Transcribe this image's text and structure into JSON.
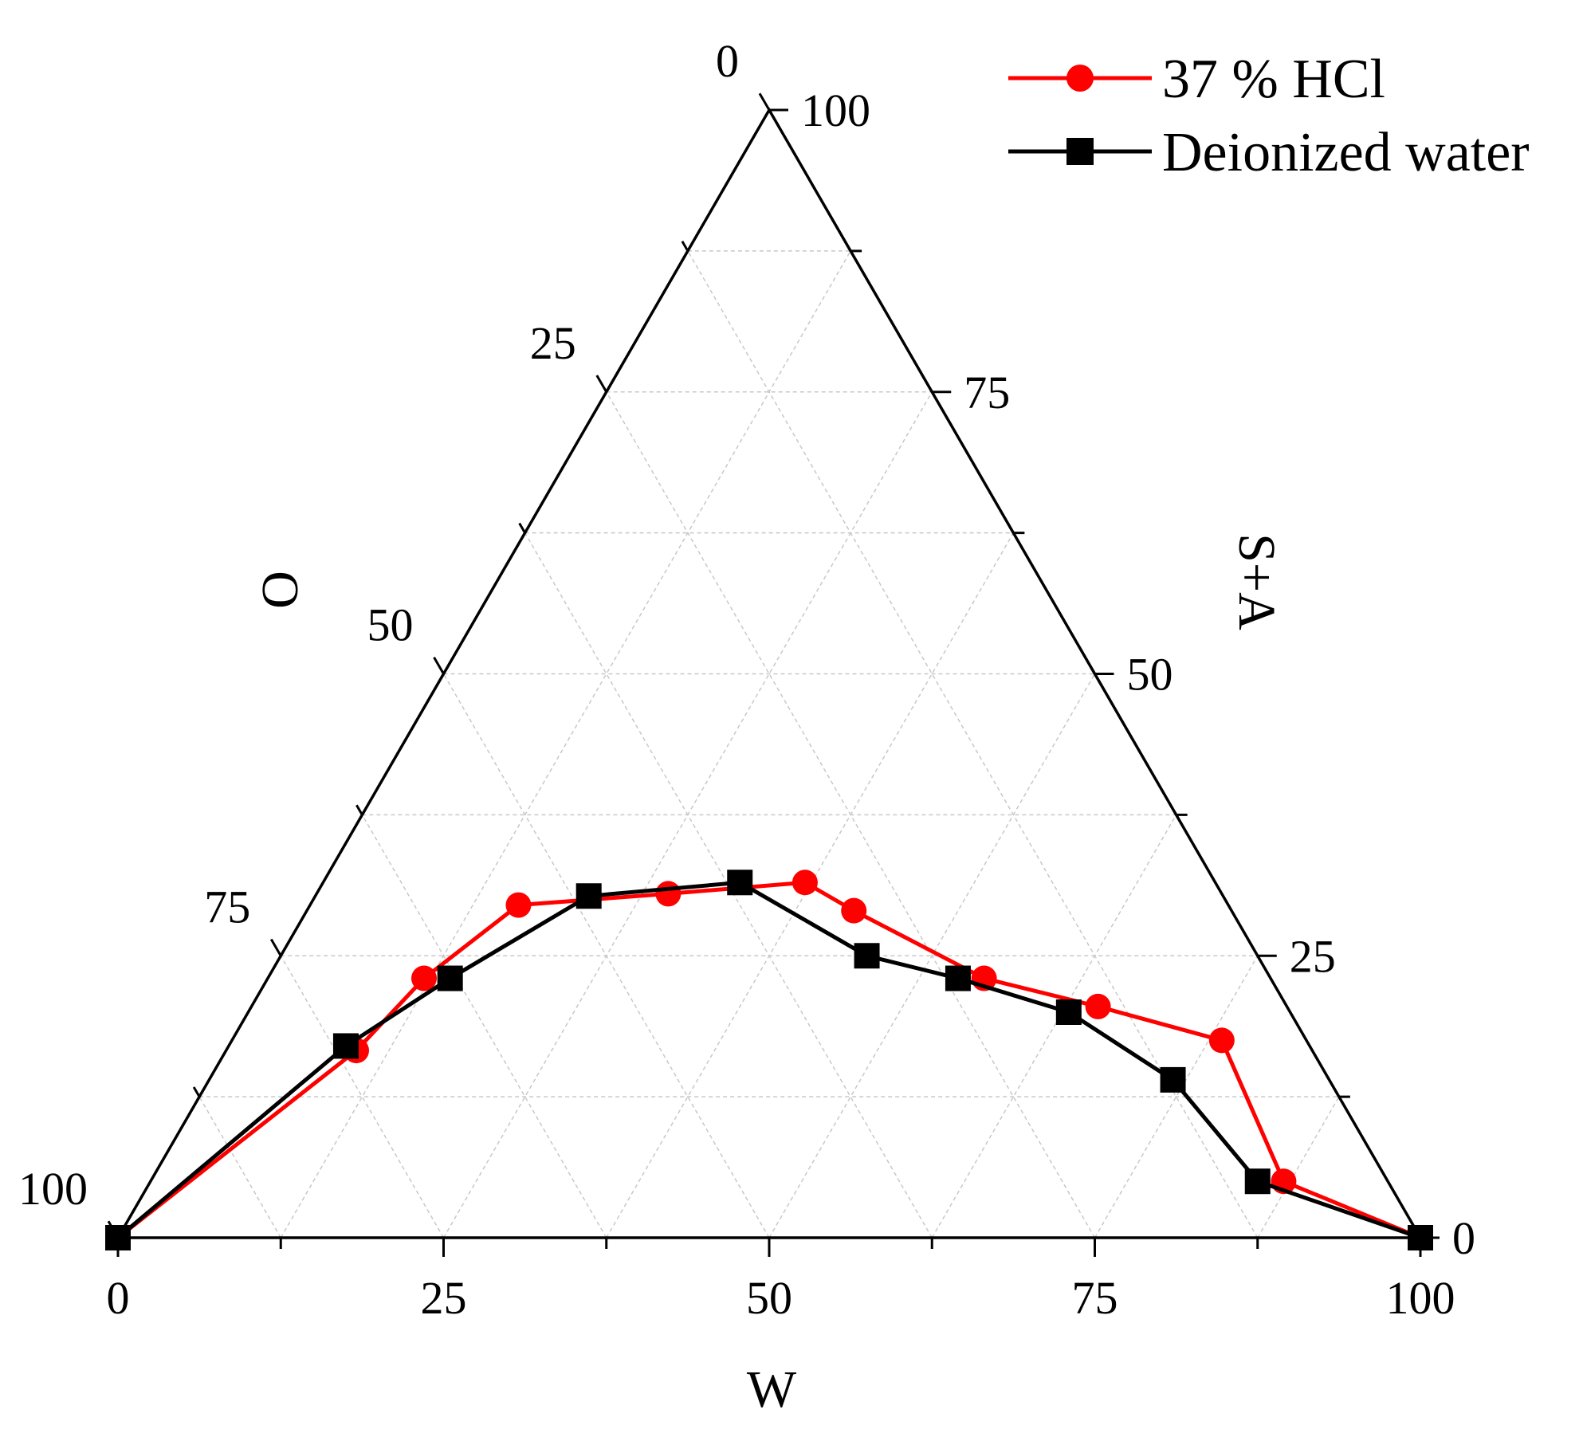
{
  "chart_data": {
    "type": "ternary",
    "axes": {
      "bottom": {
        "label": "W",
        "ticks": [
          "0",
          "25",
          "50",
          "75",
          "100"
        ]
      },
      "left": {
        "label": "O",
        "ticks": [
          "0",
          "25",
          "50",
          "75",
          "100"
        ]
      },
      "right": {
        "label": "S+A",
        "ticks": [
          "0",
          "25",
          "50",
          "75",
          "100"
        ]
      }
    },
    "grid": true,
    "legend": "top-right",
    "series": [
      {
        "name": "37 % HCl",
        "color": "#ff0000",
        "marker": "circle",
        "points": [
          {
            "W": 0,
            "S+A": 0
          },
          {
            "W": 10,
            "S+A": 16.6
          },
          {
            "W": 12,
            "S+A": 23
          },
          {
            "W": 16,
            "S+A": 29.5
          },
          {
            "W": 27,
            "S+A": 30.5
          },
          {
            "W": 37,
            "S+A": 31.5
          },
          {
            "W": 42,
            "S+A": 29
          },
          {
            "W": 55,
            "S+A": 23
          },
          {
            "W": 65,
            "S+A": 20.5
          },
          {
            "W": 76,
            "S+A": 17.5
          },
          {
            "W": 87,
            "S+A": 5
          },
          {
            "W": 100,
            "S+A": 0
          }
        ]
      },
      {
        "name": "Deionized water",
        "color": "#000000",
        "marker": "square",
        "points": [
          {
            "W": 0,
            "S+A": 0
          },
          {
            "W": 9,
            "S+A": 17
          },
          {
            "W": 14,
            "S+A": 23
          },
          {
            "W": 21,
            "S+A": 30.3
          },
          {
            "W": 32,
            "S+A": 31.5
          },
          {
            "W": 45,
            "S+A": 25
          },
          {
            "W": 53,
            "S+A": 23
          },
          {
            "W": 63,
            "S+A": 20
          },
          {
            "W": 74,
            "S+A": 14
          },
          {
            "W": 85,
            "S+A": 5
          },
          {
            "W": 100,
            "S+A": 0
          }
        ]
      }
    ]
  }
}
